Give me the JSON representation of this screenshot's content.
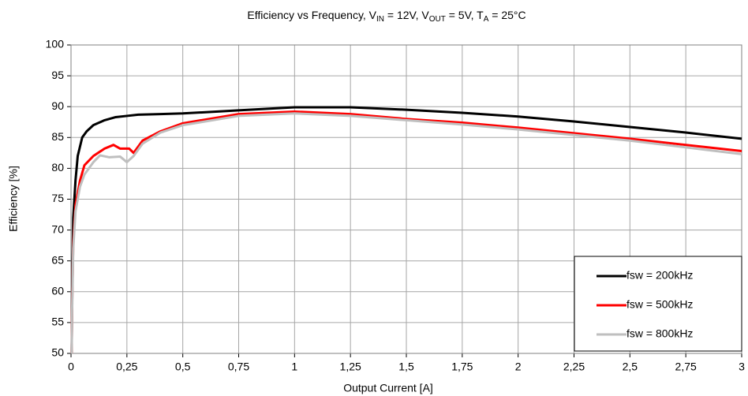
{
  "chart_data": {
    "type": "line",
    "title": [
      {
        "text": "Efficiency vs Frequency, V",
        "sub": false
      },
      {
        "text": "IN",
        "sub": true
      },
      {
        "text": " = 12V, V",
        "sub": false
      },
      {
        "text": "OUT",
        "sub": true
      },
      {
        "text": " = 5V, T",
        "sub": false
      },
      {
        "text": "A",
        "sub": true
      },
      {
        "text": " = 25°C",
        "sub": false
      }
    ],
    "x_label": "Output Current [A]",
    "y_label": "Efficiency [%]",
    "xlim": [
      0,
      3
    ],
    "ylim": [
      50,
      100
    ],
    "xticks": [
      0,
      {
        "value": 0.25,
        "label": "0,25"
      },
      {
        "value": 0.5,
        "label": "0,5"
      },
      {
        "value": 0.75,
        "label": "0,75"
      },
      1,
      {
        "value": 1.25,
        "label": "1,25"
      },
      {
        "value": 1.5,
        "label": "1,5"
      },
      {
        "value": 1.75,
        "label": "1,75"
      },
      2,
      {
        "value": 2.25,
        "label": "2,25"
      },
      {
        "value": 2.5,
        "label": "2,5"
      },
      {
        "value": 2.75,
        "label": "2,75"
      },
      3
    ],
    "yticks": [
      50,
      55,
      60,
      65,
      70,
      75,
      80,
      85,
      90,
      95,
      100
    ],
    "grid": true,
    "legend": "lower right",
    "series": [
      {
        "name": "fsw = 200kHz",
        "color": "#000000",
        "x": [
          0.003,
          0.005,
          0.01,
          0.02,
          0.03,
          0.05,
          0.07,
          0.1,
          0.15,
          0.2,
          0.25,
          0.3,
          0.4,
          0.5,
          0.75,
          1,
          1.25,
          1.5,
          1.75,
          2,
          2.25,
          2.5,
          2.75,
          3
        ],
        "values": [
          50,
          60,
          72,
          78,
          82,
          85,
          86,
          87,
          87.8,
          88.3,
          88.5,
          88.7,
          88.8,
          88.9,
          89.4,
          89.9,
          89.9,
          89.5,
          89,
          88.4,
          87.6,
          86.7,
          85.8,
          84.8
        ]
      },
      {
        "name": "fsw = 500kHz",
        "color": "#ff0000",
        "x": [
          0.003,
          0.005,
          0.01,
          0.02,
          0.04,
          0.06,
          0.1,
          0.15,
          0.19,
          0.22,
          0.26,
          0.28,
          0.32,
          0.4,
          0.5,
          0.75,
          1,
          1.25,
          1.5,
          1.75,
          2,
          2.25,
          2.5,
          2.75,
          3
        ],
        "values": [
          50,
          58,
          68,
          74,
          78,
          80.5,
          82,
          83.2,
          83.8,
          83.2,
          83.2,
          82.5,
          84.5,
          86,
          87.3,
          88.8,
          89.2,
          88.8,
          88,
          87.4,
          86.6,
          85.7,
          84.8,
          83.8,
          82.8
        ]
      },
      {
        "name": "fsw = 800kHz",
        "color": "#bfbfbf",
        "x": [
          0.003,
          0.005,
          0.01,
          0.02,
          0.04,
          0.06,
          0.1,
          0.13,
          0.17,
          0.22,
          0.25,
          0.28,
          0.32,
          0.4,
          0.5,
          0.75,
          1,
          1.25,
          1.5,
          1.75,
          2,
          2.25,
          2.5,
          2.75,
          3
        ],
        "values": [
          50,
          57,
          67,
          73,
          77,
          79,
          81,
          82.1,
          81.8,
          81.9,
          81,
          82,
          84,
          85.8,
          87,
          88.5,
          88.9,
          88.5,
          87.8,
          87.1,
          86.3,
          85.4,
          84.5,
          83.4,
          82.3
        ]
      }
    ]
  }
}
